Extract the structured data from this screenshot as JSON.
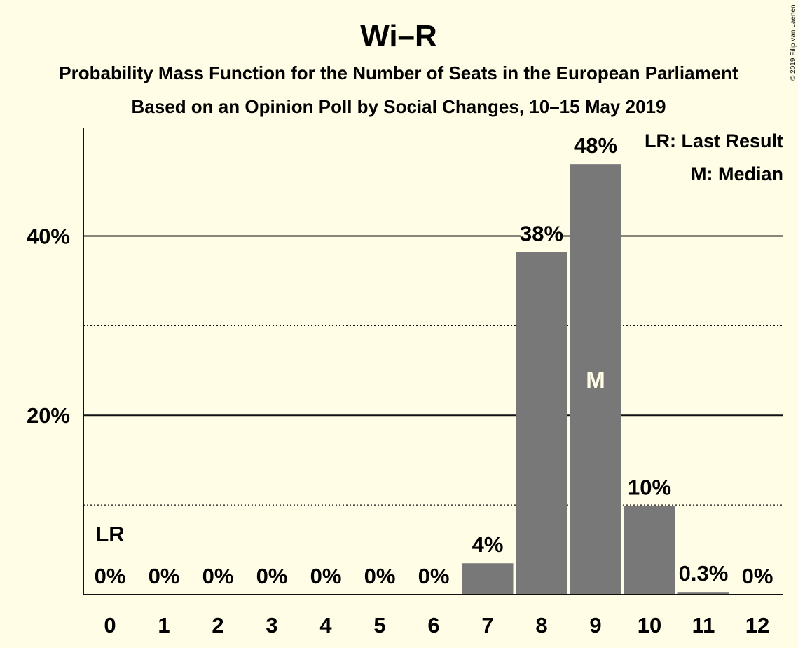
{
  "chart_data": {
    "type": "bar",
    "title": "Wi–R",
    "subtitle_lines": [
      "Probability Mass Function for the Number of Seats in the European Parliament",
      "Based on an Opinion Poll by Social Changes, 10–15 May 2019"
    ],
    "credit": "© 2019 Filip van Laenen",
    "categories": [
      "0",
      "1",
      "2",
      "3",
      "4",
      "5",
      "6",
      "7",
      "8",
      "9",
      "10",
      "11",
      "12"
    ],
    "values": [
      0,
      0,
      0,
      0,
      0,
      0,
      0,
      3.5,
      38.2,
      48.0,
      9.9,
      0.3,
      0
    ],
    "data_labels": [
      "0%",
      "0%",
      "0%",
      "0%",
      "0%",
      "0%",
      "0%",
      "4%",
      "38%",
      "48%",
      "10%",
      "0.3%",
      "0%"
    ],
    "ylim": [
      0,
      52
    ],
    "y_ticks_major": [
      {
        "value": 20,
        "label": "20%"
      },
      {
        "value": 40,
        "label": "40%"
      }
    ],
    "y_ticks_minor": [
      10,
      30
    ],
    "last_result": {
      "category": "0",
      "label": "LR"
    },
    "median": {
      "category": "9",
      "label": "M"
    },
    "legend": [
      "LR: Last Result",
      "M: Median"
    ],
    "legend_position": "top-right",
    "bar_color": "#787878",
    "background_color": "#fffde6"
  }
}
